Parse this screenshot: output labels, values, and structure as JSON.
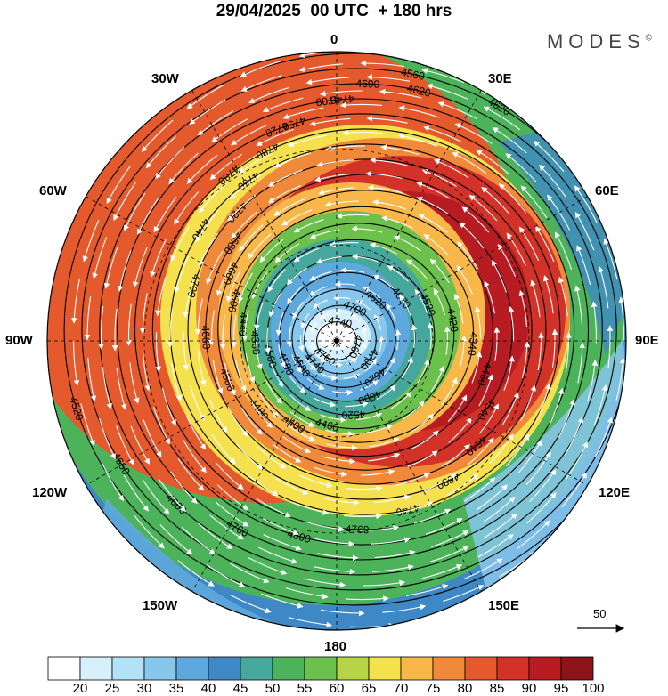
{
  "title": "29/04/2025  00 UTC  + 180 hrs",
  "brand": "MODES",
  "brand_mark": "©",
  "longitude_labels": {
    "n": "0",
    "ne30": "30E",
    "ne60": "60E",
    "e": "90E",
    "se120": "120E",
    "se150": "150E",
    "s": "180",
    "sw150": "150W",
    "sw120": "120W",
    "w": "90W",
    "nw60": "60W",
    "nw30": "30W"
  },
  "colorbar": {
    "levels": [
      "20",
      "25",
      "30",
      "35",
      "40",
      "45",
      "50",
      "55",
      "60",
      "65",
      "70",
      "75",
      "80",
      "85",
      "90",
      "95",
      "100"
    ],
    "colors": [
      "#ffffff",
      "#d6f0fb",
      "#b3e1f7",
      "#88c7ec",
      "#5ea8dd",
      "#3f88c6",
      "#46a89d",
      "#4cb35a",
      "#6cc04c",
      "#b5d447",
      "#f5e04e",
      "#f7b749",
      "#f08a3a",
      "#e55a2c",
      "#d23227",
      "#b71c22",
      "#8c1419"
    ]
  },
  "vector_scale": "50",
  "contour_labels": [
    "4740",
    "4760",
    "4760",
    "4700",
    "4700",
    "4740",
    "4620",
    "4620",
    "4680",
    "4660",
    "4600",
    "4580",
    "4520",
    "4520",
    "4500",
    "4420",
    "4460",
    "4360",
    "4340",
    "4400",
    "4440",
    "4460",
    "4480",
    "4500",
    "4540",
    "4580",
    "4600",
    "4640",
    "4660",
    "4680",
    "4680",
    "4700",
    "4720",
    "4740",
    "4740",
    "4760",
    "4760",
    "4780",
    "4780",
    "4800",
    "4720",
    "4750",
    "4760",
    "4740",
    "4700",
    "4660",
    "4620",
    "4690",
    "4660",
    "4620",
    "4560",
    "4520",
    "4480",
    "4490",
    "4500",
    "4440",
    "4760",
    "4740",
    "4720",
    "4700"
  ]
}
